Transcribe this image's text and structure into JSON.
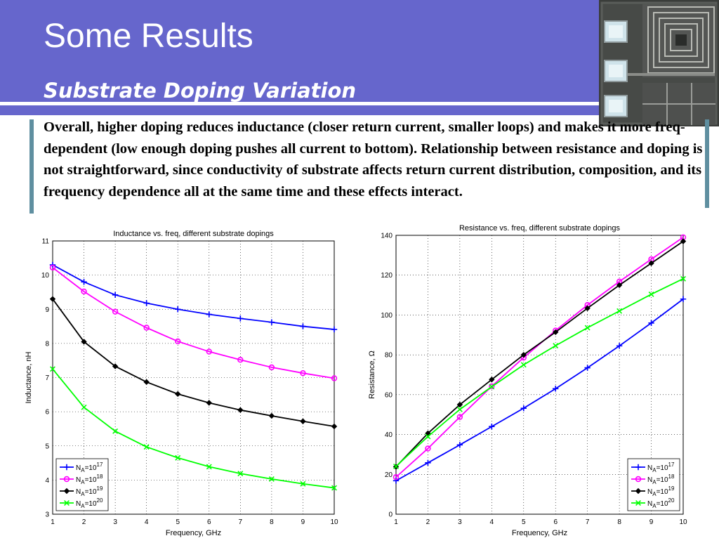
{
  "slide": {
    "title": "Some Results",
    "subtitle": "Substrate Doping Variation",
    "body": "Overall, higher doping reduces inductance (closer return current, smaller loops) and makes it more freq-dependent (low enough doping pushes all current to bottom). Relationship between resistance and doping is not straightforward, since conductivity of substrate affects return current distribution, composition, and its frequency dependence all at the same time and these effects interact.",
    "header_color": "#6666cc",
    "accent_color": "#5f8fa0"
  },
  "chart_data": [
    {
      "type": "line",
      "title": "Inductance vs. freq, different substrate dopings",
      "xlabel": "Frequency, GHz",
      "ylabel": "Inductance, nH",
      "xlim": [
        1,
        10
      ],
      "ylim": [
        3,
        11
      ],
      "xticks": [
        "1",
        "2",
        "3",
        "4",
        "5",
        "6",
        "7",
        "8",
        "9",
        "10"
      ],
      "yticks": [
        "3",
        "4",
        "5",
        "6",
        "7",
        "8",
        "9",
        "10",
        "11"
      ],
      "legend_position": "bottom-left",
      "grid": true,
      "x": [
        1,
        2,
        3,
        4,
        5,
        6,
        7,
        8,
        9,
        10
      ],
      "series": [
        {
          "name": "N",
          "sub": "A",
          "mid": "=10",
          "sup": "17",
          "color": "#0000ff",
          "marker": "plus",
          "values": [
            10.3,
            9.8,
            9.42,
            9.18,
            9.0,
            8.85,
            8.73,
            8.62,
            8.5,
            8.41
          ]
        },
        {
          "name": "N",
          "sub": "A",
          "mid": "=10",
          "sup": "18",
          "color": "#ff00ff",
          "marker": "circle",
          "values": [
            10.22,
            9.52,
            8.93,
            8.46,
            8.06,
            7.76,
            7.52,
            7.3,
            7.13,
            6.98
          ]
        },
        {
          "name": "N",
          "sub": "A",
          "mid": "=10",
          "sup": "19",
          "color": "#000000",
          "marker": "diamond",
          "values": [
            9.3,
            8.05,
            7.33,
            6.87,
            6.52,
            6.26,
            6.05,
            5.88,
            5.72,
            5.57
          ]
        },
        {
          "name": "N",
          "sub": "A",
          "mid": "=10",
          "sup": "20",
          "color": "#00ff00",
          "marker": "x",
          "values": [
            7.25,
            6.13,
            5.43,
            4.97,
            4.65,
            4.39,
            4.19,
            4.03,
            3.89,
            3.77
          ]
        }
      ]
    },
    {
      "type": "line",
      "title": "Resistance vs. freq, different substrate dopings",
      "xlabel": "Frequency, GHz",
      "ylabel": "Resistance, Ω",
      "xlim": [
        1,
        10
      ],
      "ylim": [
        0,
        140
      ],
      "xticks": [
        "1",
        "2",
        "3",
        "4",
        "5",
        "6",
        "7",
        "8",
        "9",
        "10"
      ],
      "yticks": [
        "0",
        "20",
        "40",
        "60",
        "80",
        "100",
        "120",
        "140"
      ],
      "legend_position": "bottom-right",
      "grid": true,
      "x": [
        1,
        2,
        3,
        4,
        5,
        6,
        7,
        8,
        9,
        10
      ],
      "series": [
        {
          "name": "N",
          "sub": "A",
          "mid": "=10",
          "sup": "17",
          "color": "#0000ff",
          "marker": "plus",
          "values": [
            16.8,
            25.8,
            34.8,
            44.0,
            53.2,
            63.0,
            73.5,
            84.5,
            96.0,
            108.0
          ]
        },
        {
          "name": "N",
          "sub": "A",
          "mid": "=10",
          "sup": "18",
          "color": "#ff00ff",
          "marker": "circle",
          "values": [
            18.6,
            33.0,
            48.8,
            64.2,
            78.6,
            92.2,
            105.0,
            116.8,
            128.0,
            139.0
          ]
        },
        {
          "name": "N",
          "sub": "A",
          "mid": "=10",
          "sup": "19",
          "color": "#000000",
          "marker": "diamond",
          "values": [
            23.8,
            40.6,
            55.0,
            67.6,
            80.0,
            91.4,
            103.4,
            115.0,
            126.0,
            137.0
          ]
        },
        {
          "name": "N",
          "sub": "A",
          "mid": "=10",
          "sup": "20",
          "color": "#00ff00",
          "marker": "x",
          "values": [
            24.0,
            39.0,
            52.6,
            64.0,
            75.0,
            84.6,
            93.6,
            102.0,
            110.4,
            118.2
          ]
        }
      ]
    }
  ]
}
